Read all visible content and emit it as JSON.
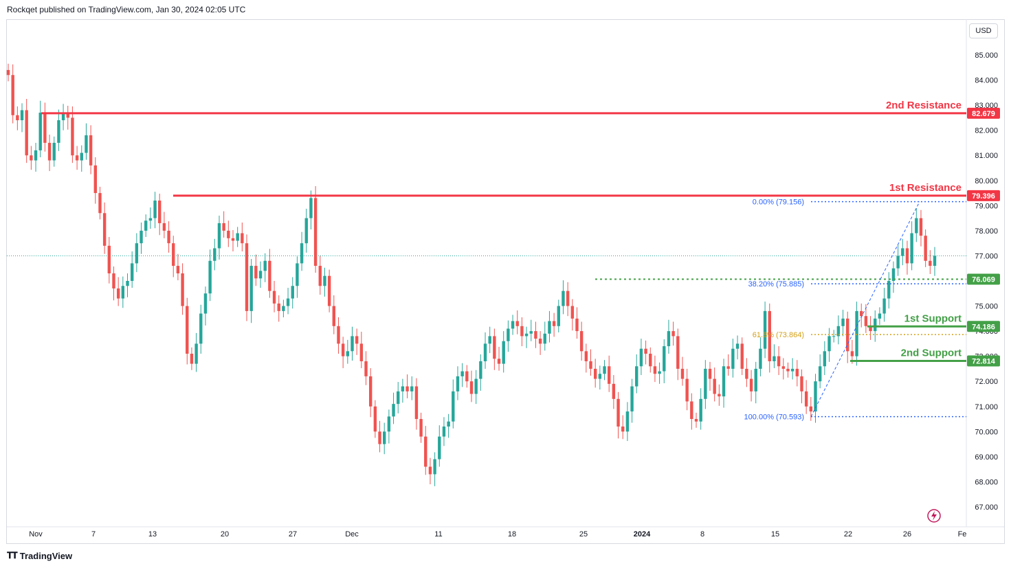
{
  "header": {
    "text": "Rockqet published on TradingView.com, Jan 30, 2024 02:05 UTC"
  },
  "currency": "USD",
  "footer": {
    "brand": "TradingView"
  },
  "colors": {
    "up": "#26a69a",
    "down": "#ef5350",
    "resistance": "#f23645",
    "support": "#43a047",
    "fib_blue": "#2962ff",
    "fib_gold": "#d4a017"
  },
  "chart_data": {
    "type": "candlestick",
    "price_axis": {
      "ticks": [
        "85.000",
        "84.000",
        "83.000",
        "82.000",
        "81.000",
        "80.000",
        "79.000",
        "78.000",
        "77.000",
        "76.000",
        "75.000",
        "74.000",
        "73.000",
        "72.000",
        "71.000",
        "70.000",
        "69.000",
        "68.000",
        "67.000"
      ]
    },
    "date_axis": {
      "ticks": [
        "Nov",
        "7",
        "13",
        "20",
        "27",
        "Dec",
        "11",
        "18",
        "25",
        "2024",
        "8",
        "15",
        "22",
        "26",
        "Fe"
      ]
    },
    "levels": [
      {
        "name": "2nd Resistance",
        "value": "82.679",
        "kind": "resistance"
      },
      {
        "name": "1st Resistance",
        "value": "79.396",
        "kind": "resistance"
      },
      {
        "name": "",
        "value": "76.069",
        "kind": "support-dotted"
      },
      {
        "name": "1st Support",
        "value": "74.186",
        "kind": "support"
      },
      {
        "name": "2nd Support",
        "value": "72.814",
        "kind": "support"
      }
    ],
    "fib": [
      {
        "label": "0.00% (79.156)",
        "value": 79.156
      },
      {
        "label": "38.20% (75.885)",
        "value": 75.885
      },
      {
        "label": "61.8% (73.864)",
        "value": 73.864
      },
      {
        "label": "100.00% (70.593)",
        "value": 70.593
      }
    ],
    "last_price": 77.0,
    "closes": [
      84.2,
      82.6,
      82.4,
      82.8,
      81.0,
      80.8,
      81.2,
      82.7,
      81.5,
      80.8,
      81.5,
      82.4,
      82.7,
      82.5,
      81.0,
      80.8,
      81.1,
      81.8,
      80.6,
      79.5,
      78.7,
      77.4,
      76.3,
      75.7,
      75.3,
      75.8,
      76.0,
      76.7,
      77.5,
      78.0,
      78.4,
      78.5,
      79.2,
      78.3,
      78.0,
      77.5,
      76.6,
      76.3,
      75.0,
      73.1,
      72.7,
      73.5,
      74.7,
      75.5,
      76.8,
      77.3,
      78.3,
      78.0,
      77.7,
      77.6,
      77.9,
      77.5,
      74.8,
      76.6,
      76.1,
      76.4,
      76.8,
      75.6,
      75.1,
      74.8,
      75.0,
      75.3,
      75.8,
      76.7,
      77.5,
      78.5,
      79.3,
      76.6,
      75.8,
      76.2,
      75.0,
      74.2,
      73.5,
      73.0,
      73.2,
      73.8,
      73.5,
      72.8,
      72.2,
      71.0,
      70.0,
      69.5,
      70.0,
      70.6,
      71.1,
      71.6,
      71.8,
      71.6,
      71.8,
      70.5,
      69.8,
      68.6,
      68.3,
      68.9,
      69.8,
      70.2,
      70.4,
      71.6,
      72.2,
      72.4,
      72.0,
      71.5,
      72.1,
      72.8,
      73.5,
      73.8,
      72.9,
      72.7,
      73.6,
      74.1,
      74.4,
      74.2,
      73.8,
      73.9,
      74.0,
      73.7,
      73.5,
      73.9,
      74.4,
      74.2,
      75.0,
      75.6,
      75.0,
      74.5,
      74.0,
      73.2,
      72.8,
      72.5,
      72.1,
      72.3,
      72.6,
      71.9,
      71.3,
      70.2,
      70.0,
      70.8,
      71.8,
      72.6,
      73.3,
      73.1,
      72.6,
      72.3,
      72.4,
      73.4,
      74.0,
      73.8,
      72.5,
      72.1,
      71.2,
      70.5,
      70.4,
      71.3,
      72.5,
      72.1,
      71.5,
      71.4,
      72.6,
      72.5,
      73.3,
      73.5,
      72.5,
      72.1,
      71.6,
      72.5,
      73.3,
      74.8,
      72.8,
      73.0,
      72.6,
      72.5,
      72.4,
      72.5,
      72.2,
      71.6,
      71.0,
      70.8,
      72.0,
      72.6,
      73.2,
      73.8,
      73.8,
      74.2,
      74.5,
      73.2,
      73.0,
      74.8,
      74.6,
      74.2,
      74.0,
      74.5,
      74.7,
      75.3,
      76.0,
      76.5,
      77.0,
      77.3,
      76.7,
      77.9,
      78.5,
      77.8,
      76.8,
      76.6,
      77.0
    ]
  }
}
